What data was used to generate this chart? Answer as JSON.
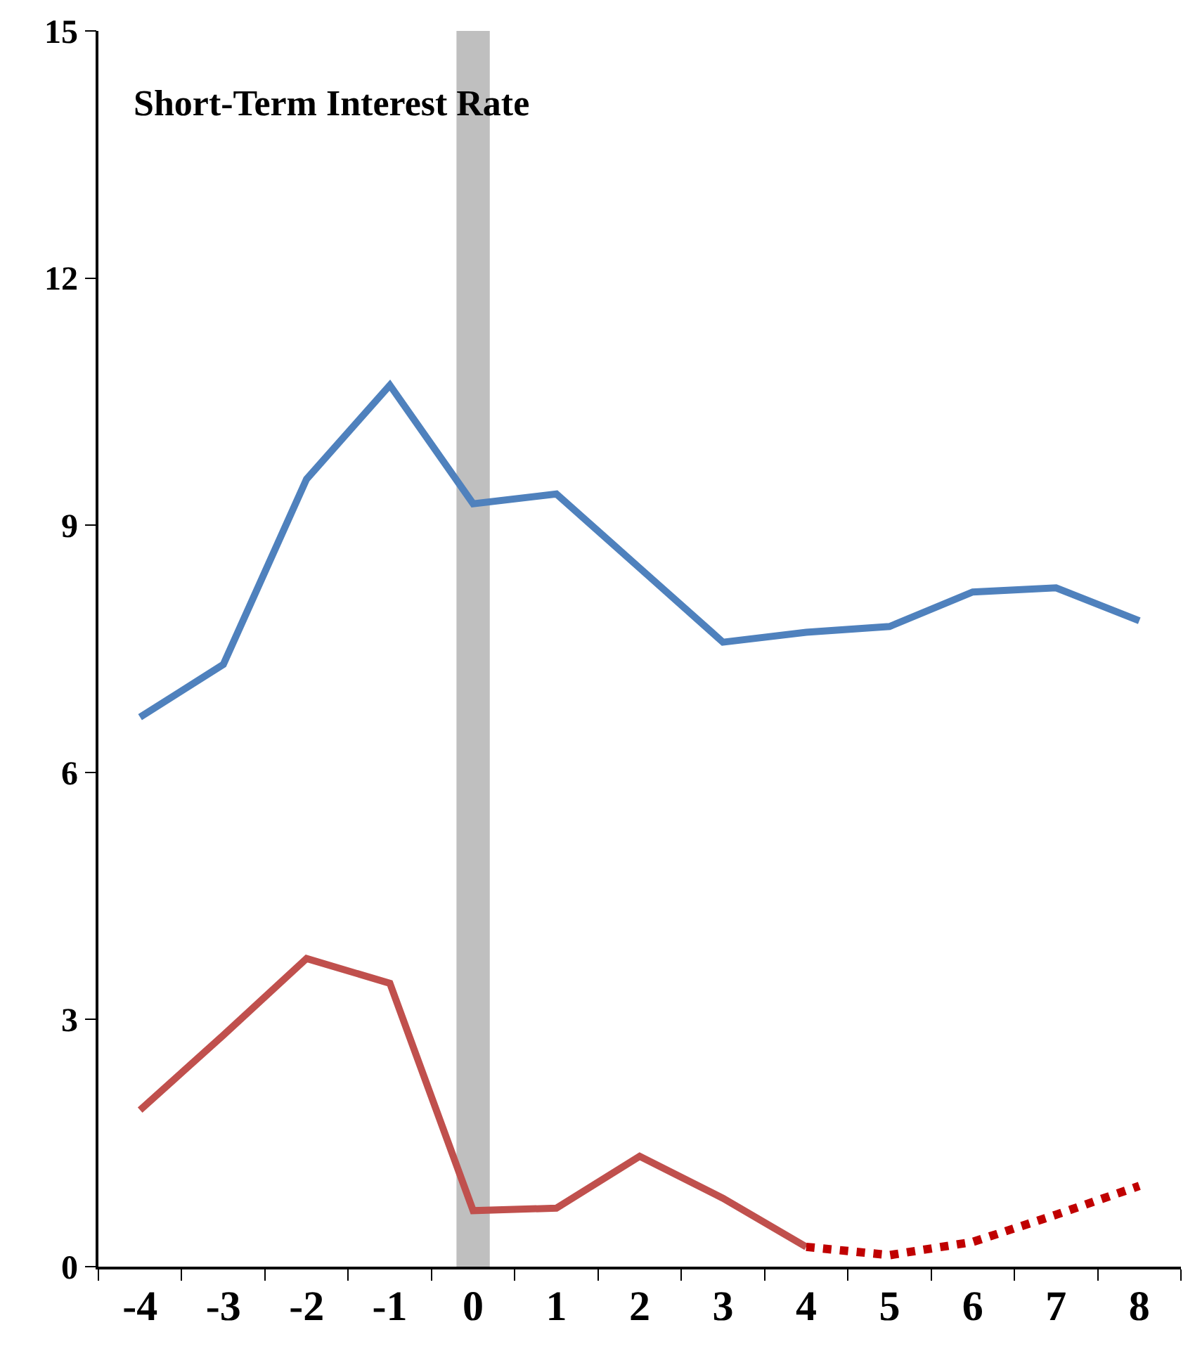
{
  "chart_data": {
    "type": "line",
    "title": "Short-Term Interest Rate",
    "x": [
      -4,
      -3,
      -2,
      -1,
      0,
      1,
      2,
      3,
      4,
      5,
      6,
      7,
      8
    ],
    "series": [
      {
        "color": "#4f81bd",
        "values": [
          6.67,
          7.31,
          9.56,
          10.7,
          9.26,
          9.38,
          8.48,
          7.58,
          7.7,
          7.77,
          8.19,
          8.24,
          7.84
        ]
      },
      {
        "color": "#c0504d",
        "x": [
          -4,
          -3,
          -2,
          -1,
          0,
          1,
          2,
          3,
          4
        ],
        "values": [
          1.9,
          2.81,
          3.74,
          3.44,
          0.68,
          0.71,
          1.34,
          0.83,
          0.24
        ]
      },
      {
        "color": "#c00000",
        "x": [
          4,
          5,
          6,
          7,
          8
        ],
        "values": [
          0.24,
          0.14,
          0.3,
          0.63,
          0.98
        ],
        "line_style": "dotted"
      }
    ],
    "xlim": [
      -4.5,
      8.5
    ],
    "xticks": [
      -4,
      -3,
      -2,
      -1,
      0,
      1,
      2,
      3,
      4,
      5,
      6,
      7,
      8
    ],
    "ylim": [
      0,
      15
    ],
    "yticks": [
      0,
      3,
      6,
      9,
      12,
      15
    ],
    "bands": [
      {
        "axis": "x",
        "from": -0.2,
        "to": 0.2,
        "color": "#bfbfbf"
      }
    ],
    "grid": false
  }
}
